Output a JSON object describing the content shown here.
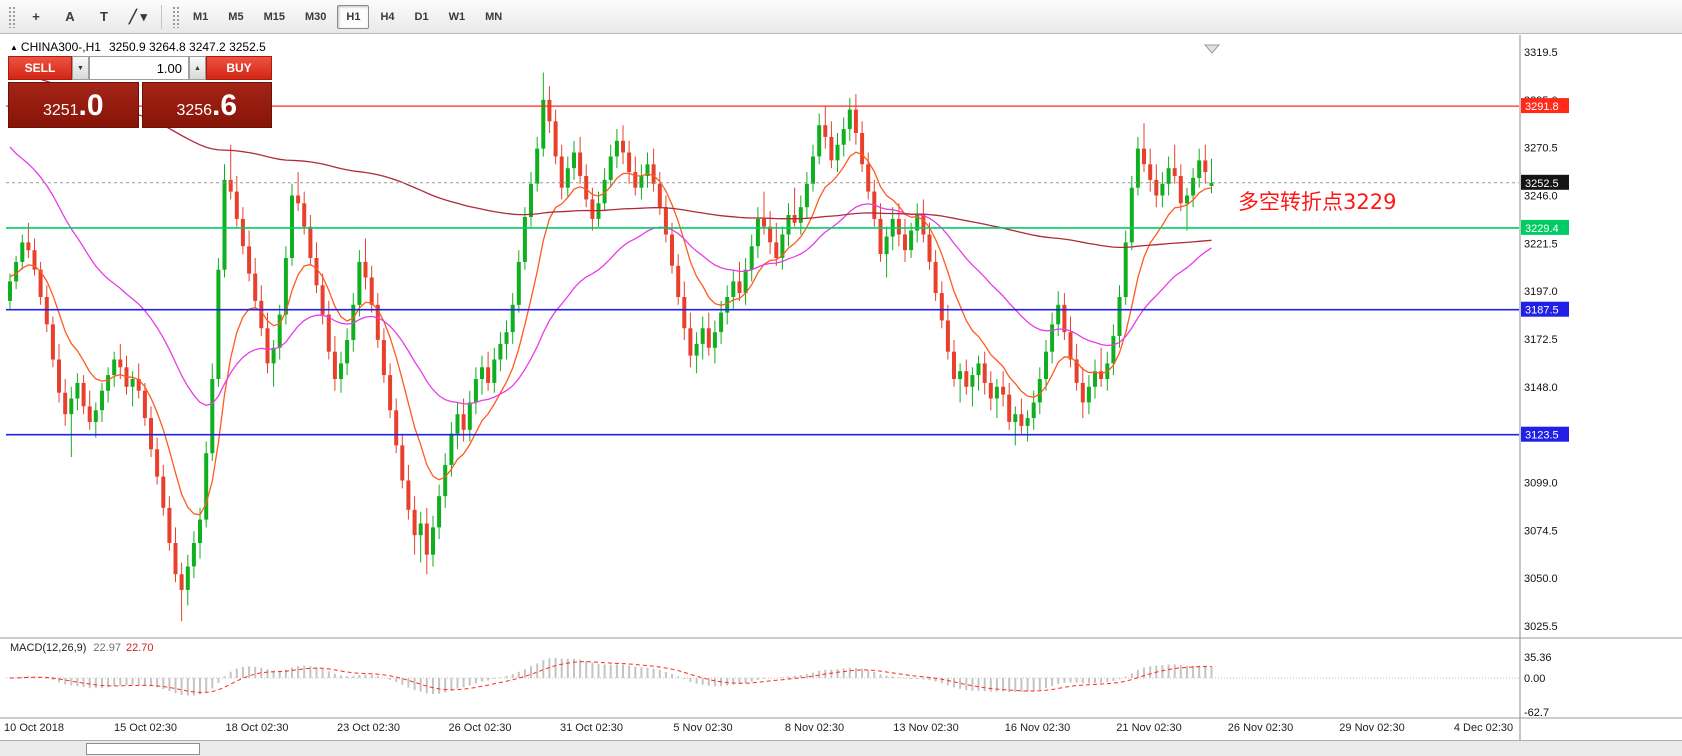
{
  "toolbar": {
    "tools": [
      {
        "id": "crosshair",
        "glyph": "+"
      },
      {
        "id": "text-label",
        "glyph": "A"
      },
      {
        "id": "text",
        "glyph": "T"
      },
      {
        "id": "line-tools",
        "glyph": "╱",
        "caret": "▾"
      }
    ],
    "timeframes": [
      "M1",
      "M5",
      "M15",
      "M30",
      "H1",
      "H4",
      "D1",
      "W1",
      "MN"
    ],
    "active_timeframe": "H1"
  },
  "symbol_header": {
    "marker": "▲",
    "text": "CHINA300-,H1",
    "ohlc": "3250.9 3264.8 3247.2 3252.5"
  },
  "trade_panel": {
    "sell_label": "SELL",
    "buy_label": "BUY",
    "volume": "1.00",
    "volume_down_glyph": "▼",
    "volume_up_glyph": "▲",
    "sell_price": {
      "main": "3251",
      "big": ".0"
    },
    "buy_price": {
      "main": "3256",
      "big": ".6"
    },
    "button_color": "#e23b2e",
    "tile_color": "#9a1f14"
  },
  "annotation": {
    "text": "多空转折点3229",
    "color": "#ff1616"
  },
  "price_axis": {
    "ticks": [
      "3319.5",
      "3295.0",
      "3270.5",
      "3246.0",
      "3221.5",
      "3197.0",
      "3172.5",
      "3148.0",
      "3123.5",
      "3099.0",
      "3074.5",
      "3050.0",
      "3025.5"
    ],
    "badges": [
      {
        "label": "3291.8",
        "price": 3291.8,
        "color": "#ff2a1a",
        "text_color": "#ffffff"
      },
      {
        "label": "3252.5",
        "price": 3252.5,
        "color": "#141414",
        "text_color": "#ffffff"
      },
      {
        "label": "3229.4",
        "price": 3229.4,
        "color": "#00cc66",
        "text_color": "#ffffff"
      },
      {
        "label": "3187.5",
        "price": 3187.5,
        "color": "#2020e6",
        "text_color": "#ffffff"
      },
      {
        "label": "3123.5",
        "price": 3123.5,
        "color": "#2020e6",
        "text_color": "#ffffff"
      }
    ]
  },
  "macd_panel": {
    "label": "MACD(12,26,9)",
    "value_main": "22.97",
    "value_signal": "22.70",
    "axis_labels": [
      "35.36",
      "0.00",
      "-62.7"
    ],
    "histogram_color": "#c4c4c4",
    "signal_color": "#ff2a1a"
  },
  "chart_data": {
    "type": "candlestick",
    "title": "CHINA300-,H1",
    "symbol": "CHINA300-",
    "timeframe": "H1",
    "current_ohlc": {
      "open": 3250.9,
      "high": 3264.8,
      "low": 3247.2,
      "close": 3252.5
    },
    "price_range": [
      3025.5,
      3319.5
    ],
    "grid": false,
    "up_color": "#0faf1f",
    "down_color": "#e8402d",
    "x_tick_labels": [
      "10 Oct 2018",
      "15 Oct 02:30",
      "18 Oct 02:30",
      "23 Oct 02:30",
      "26 Oct 02:30",
      "31 Oct 02:30",
      "5 Nov 02:30",
      "8 Nov 02:30",
      "13 Nov 02:30",
      "16 Nov 02:30",
      "21 Nov 02:30",
      "26 Nov 02:30",
      "29 Nov 02:30",
      "4 Dec 02:30"
    ],
    "horizontal_lines": [
      {
        "price": 3291.8,
        "color": "#ff2a1a",
        "style": "solid",
        "width": 1.2
      },
      {
        "price": 3229.4,
        "color": "#00cc66",
        "style": "solid",
        "width": 1.6
      },
      {
        "price": 3187.5,
        "color": "#2020e6",
        "style": "solid",
        "width": 1.6
      },
      {
        "price": 3123.5,
        "color": "#2020e6",
        "style": "solid",
        "width": 1.6
      },
      {
        "price": 3252.5,
        "color": "#9a9a9a",
        "style": "dashed",
        "width": 1
      }
    ],
    "moving_averages": [
      {
        "name": "fast-ma",
        "period": 10,
        "color": "#ff5a1f",
        "seed": 3205
      },
      {
        "name": "mid-ma",
        "period": 34,
        "color": "#e83ce8",
        "seed": 3275
      },
      {
        "name": "slow-ma",
        "period": 260,
        "color": "#b12a3a",
        "seed": 3310
      }
    ],
    "macd": {
      "fast": 12,
      "slow": 26,
      "signal": 9
    },
    "candles": [
      [
        3192,
        3206,
        3188,
        3202
      ],
      [
        3202,
        3215,
        3198,
        3212
      ],
      [
        3212,
        3226,
        3208,
        3222
      ],
      [
        3222,
        3232,
        3214,
        3218
      ],
      [
        3218,
        3224,
        3205,
        3208
      ],
      [
        3208,
        3212,
        3190,
        3194
      ],
      [
        3194,
        3200,
        3176,
        3180
      ],
      [
        3180,
        3184,
        3158,
        3162
      ],
      [
        3162,
        3170,
        3140,
        3145
      ],
      [
        3145,
        3152,
        3128,
        3134
      ],
      [
        3134,
        3148,
        3112,
        3142
      ],
      [
        3142,
        3155,
        3136,
        3150
      ],
      [
        3150,
        3154,
        3134,
        3138
      ],
      [
        3138,
        3146,
        3126,
        3130
      ],
      [
        3130,
        3140,
        3122,
        3136
      ],
      [
        3136,
        3150,
        3130,
        3146
      ],
      [
        3146,
        3158,
        3140,
        3154
      ],
      [
        3154,
        3166,
        3148,
        3162
      ],
      [
        3162,
        3170,
        3152,
        3158
      ],
      [
        3158,
        3164,
        3144,
        3148
      ],
      [
        3148,
        3156,
        3138,
        3152
      ],
      [
        3152,
        3160,
        3142,
        3146
      ],
      [
        3146,
        3150,
        3128,
        3132
      ],
      [
        3132,
        3138,
        3112,
        3116
      ],
      [
        3116,
        3122,
        3098,
        3102
      ],
      [
        3102,
        3108,
        3082,
        3086
      ],
      [
        3086,
        3092,
        3064,
        3068
      ],
      [
        3068,
        3076,
        3048,
        3052
      ],
      [
        3052,
        3058,
        3028,
        3044
      ],
      [
        3044,
        3062,
        3036,
        3056
      ],
      [
        3056,
        3074,
        3050,
        3068
      ],
      [
        3068,
        3086,
        3060,
        3080
      ],
      [
        3080,
        3120,
        3076,
        3114
      ],
      [
        3114,
        3160,
        3110,
        3152
      ],
      [
        3152,
        3214,
        3148,
        3208
      ],
      [
        3208,
        3262,
        3204,
        3254
      ],
      [
        3254,
        3272,
        3244,
        3248
      ],
      [
        3248,
        3256,
        3230,
        3234
      ],
      [
        3234,
        3240,
        3216,
        3220
      ],
      [
        3220,
        3228,
        3202,
        3206
      ],
      [
        3206,
        3214,
        3188,
        3192
      ],
      [
        3192,
        3200,
        3174,
        3178
      ],
      [
        3178,
        3186,
        3155,
        3160
      ],
      [
        3160,
        3172,
        3148,
        3168
      ],
      [
        3168,
        3190,
        3162,
        3185
      ],
      [
        3185,
        3220,
        3180,
        3214
      ],
      [
        3214,
        3252,
        3210,
        3246
      ],
      [
        3246,
        3258,
        3238,
        3242
      ],
      [
        3242,
        3248,
        3226,
        3230
      ],
      [
        3230,
        3236,
        3210,
        3214
      ],
      [
        3214,
        3222,
        3196,
        3200
      ],
      [
        3200,
        3206,
        3180,
        3185
      ],
      [
        3185,
        3192,
        3162,
        3166
      ],
      [
        3166,
        3174,
        3146,
        3152
      ],
      [
        3152,
        3166,
        3145,
        3160
      ],
      [
        3160,
        3178,
        3154,
        3172
      ],
      [
        3172,
        3196,
        3166,
        3190
      ],
      [
        3190,
        3218,
        3184,
        3212
      ],
      [
        3212,
        3224,
        3198,
        3204
      ],
      [
        3204,
        3210,
        3186,
        3190
      ],
      [
        3190,
        3196,
        3168,
        3172
      ],
      [
        3172,
        3178,
        3150,
        3154
      ],
      [
        3154,
        3160,
        3132,
        3136
      ],
      [
        3136,
        3142,
        3114,
        3118
      ],
      [
        3118,
        3124,
        3096,
        3100
      ],
      [
        3100,
        3108,
        3080,
        3085
      ],
      [
        3085,
        3092,
        3062,
        3072
      ],
      [
        3072,
        3084,
        3058,
        3078
      ],
      [
        3078,
        3086,
        3052,
        3062
      ],
      [
        3062,
        3082,
        3056,
        3076
      ],
      [
        3076,
        3098,
        3070,
        3092
      ],
      [
        3092,
        3114,
        3086,
        3108
      ],
      [
        3108,
        3130,
        3102,
        3124
      ],
      [
        3124,
        3140,
        3116,
        3134
      ],
      [
        3134,
        3142,
        3120,
        3126
      ],
      [
        3126,
        3146,
        3120,
        3140
      ],
      [
        3140,
        3158,
        3134,
        3152
      ],
      [
        3152,
        3164,
        3144,
        3158
      ],
      [
        3158,
        3166,
        3146,
        3150
      ],
      [
        3150,
        3168,
        3145,
        3162
      ],
      [
        3162,
        3176,
        3156,
        3170
      ],
      [
        3170,
        3182,
        3162,
        3176
      ],
      [
        3176,
        3196,
        3170,
        3190
      ],
      [
        3190,
        3218,
        3186,
        3212
      ],
      [
        3212,
        3240,
        3208,
        3235
      ],
      [
        3235,
        3258,
        3230,
        3252
      ],
      [
        3252,
        3276,
        3248,
        3270
      ],
      [
        3270,
        3309,
        3266,
        3295
      ],
      [
        3295,
        3302,
        3278,
        3284
      ],
      [
        3284,
        3290,
        3262,
        3266
      ],
      [
        3266,
        3272,
        3244,
        3250
      ],
      [
        3250,
        3266,
        3245,
        3260
      ],
      [
        3260,
        3274,
        3254,
        3268
      ],
      [
        3268,
        3276,
        3252,
        3256
      ],
      [
        3256,
        3262,
        3240,
        3244
      ],
      [
        3244,
        3250,
        3228,
        3234
      ],
      [
        3234,
        3248,
        3230,
        3242
      ],
      [
        3242,
        3260,
        3238,
        3254
      ],
      [
        3254,
        3272,
        3250,
        3266
      ],
      [
        3266,
        3280,
        3260,
        3274
      ],
      [
        3274,
        3282,
        3262,
        3268
      ],
      [
        3268,
        3274,
        3252,
        3258
      ],
      [
        3258,
        3266,
        3246,
        3250
      ],
      [
        3250,
        3262,
        3244,
        3256
      ],
      [
        3256,
        3268,
        3250,
        3262
      ],
      [
        3262,
        3270,
        3248,
        3252
      ],
      [
        3252,
        3258,
        3236,
        3240
      ],
      [
        3240,
        3246,
        3222,
        3226
      ],
      [
        3226,
        3232,
        3206,
        3210
      ],
      [
        3210,
        3216,
        3190,
        3194
      ],
      [
        3194,
        3202,
        3172,
        3178
      ],
      [
        3178,
        3186,
        3158,
        3164
      ],
      [
        3164,
        3176,
        3155,
        3170
      ],
      [
        3170,
        3184,
        3162,
        3178
      ],
      [
        3178,
        3186,
        3164,
        3168
      ],
      [
        3168,
        3182,
        3160,
        3176
      ],
      [
        3176,
        3192,
        3170,
        3186
      ],
      [
        3186,
        3200,
        3180,
        3194
      ],
      [
        3194,
        3208,
        3188,
        3202
      ],
      [
        3202,
        3212,
        3192,
        3196
      ],
      [
        3196,
        3214,
        3190,
        3208
      ],
      [
        3208,
        3226,
        3202,
        3220
      ],
      [
        3220,
        3240,
        3214,
        3234
      ],
      [
        3234,
        3248,
        3226,
        3230
      ],
      [
        3230,
        3238,
        3216,
        3222
      ],
      [
        3222,
        3232,
        3210,
        3214
      ],
      [
        3214,
        3230,
        3208,
        3226
      ],
      [
        3226,
        3242,
        3220,
        3236
      ],
      [
        3236,
        3250,
        3230,
        3232
      ],
      [
        3232,
        3246,
        3226,
        3240
      ],
      [
        3240,
        3258,
        3234,
        3252
      ],
      [
        3252,
        3272,
        3248,
        3266
      ],
      [
        3266,
        3288,
        3262,
        3282
      ],
      [
        3282,
        3292,
        3270,
        3276
      ],
      [
        3276,
        3284,
        3260,
        3264
      ],
      [
        3264,
        3278,
        3258,
        3272
      ],
      [
        3272,
        3286,
        3266,
        3280
      ],
      [
        3280,
        3296,
        3274,
        3290
      ],
      [
        3290,
        3298,
        3272,
        3278
      ],
      [
        3278,
        3284,
        3258,
        3262
      ],
      [
        3262,
        3268,
        3244,
        3248
      ],
      [
        3248,
        3254,
        3230,
        3234
      ],
      [
        3234,
        3242,
        3212,
        3216
      ],
      [
        3216,
        3230,
        3204,
        3225
      ],
      [
        3225,
        3240,
        3218,
        3234
      ],
      [
        3234,
        3242,
        3220,
        3226
      ],
      [
        3226,
        3234,
        3212,
        3218
      ],
      [
        3218,
        3232,
        3214,
        3228
      ],
      [
        3228,
        3242,
        3222,
        3236
      ],
      [
        3236,
        3244,
        3222,
        3226
      ],
      [
        3226,
        3232,
        3208,
        3212
      ],
      [
        3212,
        3218,
        3192,
        3196
      ],
      [
        3196,
        3202,
        3178,
        3182
      ],
      [
        3182,
        3190,
        3162,
        3166
      ],
      [
        3166,
        3172,
        3148,
        3152
      ],
      [
        3152,
        3160,
        3140,
        3156
      ],
      [
        3156,
        3162,
        3144,
        3148
      ],
      [
        3148,
        3158,
        3138,
        3154
      ],
      [
        3154,
        3164,
        3146,
        3160
      ],
      [
        3160,
        3166,
        3144,
        3150
      ],
      [
        3150,
        3156,
        3136,
        3142
      ],
      [
        3142,
        3152,
        3132,
        3148
      ],
      [
        3148,
        3156,
        3138,
        3144
      ],
      [
        3144,
        3150,
        3126,
        3130
      ],
      [
        3130,
        3138,
        3118,
        3134
      ],
      [
        3134,
        3142,
        3124,
        3128
      ],
      [
        3128,
        3136,
        3120,
        3132
      ],
      [
        3132,
        3146,
        3126,
        3140
      ],
      [
        3140,
        3158,
        3134,
        3152
      ],
      [
        3152,
        3172,
        3146,
        3166
      ],
      [
        3166,
        3186,
        3160,
        3180
      ],
      [
        3180,
        3197,
        3174,
        3190
      ],
      [
        3190,
        3196,
        3172,
        3176
      ],
      [
        3176,
        3184,
        3158,
        3162
      ],
      [
        3162,
        3170,
        3146,
        3150
      ],
      [
        3150,
        3158,
        3132,
        3140
      ],
      [
        3140,
        3154,
        3134,
        3148
      ],
      [
        3148,
        3162,
        3142,
        3156
      ],
      [
        3156,
        3168,
        3148,
        3152
      ],
      [
        3152,
        3166,
        3146,
        3160
      ],
      [
        3160,
        3180,
        3154,
        3174
      ],
      [
        3174,
        3200,
        3168,
        3194
      ],
      [
        3194,
        3228,
        3190,
        3222
      ],
      [
        3222,
        3256,
        3218,
        3250
      ],
      [
        3250,
        3276,
        3246,
        3270
      ],
      [
        3270,
        3283,
        3258,
        3262
      ],
      [
        3262,
        3270,
        3248,
        3254
      ],
      [
        3254,
        3262,
        3240,
        3246
      ],
      [
        3246,
        3258,
        3240,
        3252
      ],
      [
        3252,
        3266,
        3246,
        3260
      ],
      [
        3260,
        3272,
        3252,
        3256
      ],
      [
        3256,
        3262,
        3238,
        3242
      ],
      [
        3242,
        3250,
        3228,
        3246
      ],
      [
        3246,
        3260,
        3240,
        3255
      ],
      [
        3255,
        3270,
        3250,
        3264
      ],
      [
        3264,
        3272,
        3252,
        3258
      ],
      [
        3250.9,
        3264.8,
        3247.2,
        3252.5
      ]
    ]
  }
}
